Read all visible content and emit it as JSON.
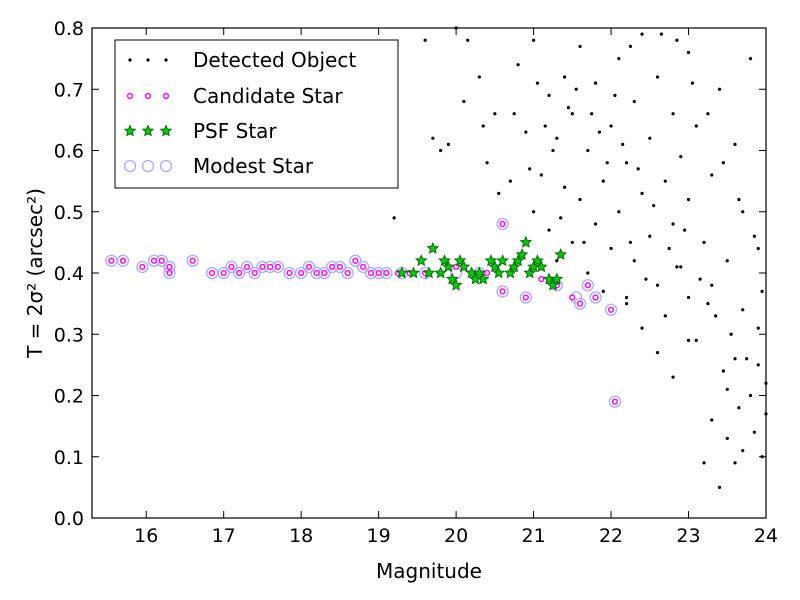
{
  "chart_data": {
    "type": "scatter",
    "xlabel": "Magnitude",
    "ylabel": "T = 2σ² (arcsec²)",
    "xlim": [
      15.3,
      24
    ],
    "ylim": [
      0.0,
      0.8
    ],
    "xticks": [
      16,
      17,
      18,
      19,
      20,
      21,
      22,
      23,
      24
    ],
    "yticks": [
      0.0,
      0.1,
      0.2,
      0.3,
      0.4,
      0.5,
      0.6,
      0.7,
      0.8
    ],
    "xtick_labels": [
      "16",
      "17",
      "18",
      "19",
      "20",
      "21",
      "22",
      "23",
      "24"
    ],
    "ytick_labels": [
      "0.0",
      "0.1",
      "0.2",
      "0.3",
      "0.4",
      "0.5",
      "0.6",
      "0.7",
      "0.8"
    ],
    "grid": false,
    "legend_position": "top-left",
    "colors": {
      "detected": "#000000",
      "candidate": "#ff00ff",
      "psf_fill": "#00cc00",
      "psf_edge": "#006400",
      "modest": "#aaaaff"
    },
    "series": [
      {
        "name": "Detected Object",
        "marker": "dot",
        "points": [
          [
            19.2,
            0.49
          ],
          [
            19.7,
            0.62
          ],
          [
            19.8,
            0.6
          ],
          [
            19.9,
            0.61
          ],
          [
            19.6,
            0.78
          ],
          [
            20.0,
            0.8
          ],
          [
            20.1,
            0.68
          ],
          [
            20.3,
            0.72
          ],
          [
            20.4,
            0.58
          ],
          [
            20.5,
            0.66
          ],
          [
            20.6,
            0.48
          ],
          [
            20.6,
            0.37
          ],
          [
            20.7,
            0.55
          ],
          [
            20.8,
            0.74
          ],
          [
            20.9,
            0.63
          ],
          [
            21.0,
            0.5
          ],
          [
            21.0,
            0.78
          ],
          [
            21.1,
            0.56
          ],
          [
            21.2,
            0.47
          ],
          [
            21.2,
            0.69
          ],
          [
            21.3,
            0.62
          ],
          [
            21.3,
            0.42
          ],
          [
            21.4,
            0.54
          ],
          [
            21.4,
            0.72
          ],
          [
            21.5,
            0.45
          ],
          [
            21.5,
            0.66
          ],
          [
            21.6,
            0.52
          ],
          [
            21.6,
            0.77
          ],
          [
            21.7,
            0.4
          ],
          [
            21.7,
            0.6
          ],
          [
            21.8,
            0.48
          ],
          [
            21.8,
            0.71
          ],
          [
            21.9,
            0.55
          ],
          [
            21.9,
            0.37
          ],
          [
            22.0,
            0.64
          ],
          [
            22.0,
            0.44
          ],
          [
            22.05,
            0.19
          ],
          [
            22.1,
            0.75
          ],
          [
            22.1,
            0.5
          ],
          [
            22.2,
            0.58
          ],
          [
            22.2,
            0.35
          ],
          [
            22.3,
            0.68
          ],
          [
            22.3,
            0.42
          ],
          [
            22.4,
            0.53
          ],
          [
            22.4,
            0.79
          ],
          [
            22.5,
            0.46
          ],
          [
            22.5,
            0.62
          ],
          [
            22.6,
            0.38
          ],
          [
            22.6,
            0.72
          ],
          [
            22.7,
            0.55
          ],
          [
            22.7,
            0.33
          ],
          [
            22.8,
            0.66
          ],
          [
            22.8,
            0.48
          ],
          [
            22.9,
            0.59
          ],
          [
            22.9,
            0.41
          ],
          [
            23.0,
            0.76
          ],
          [
            23.0,
            0.36
          ],
          [
            23.0,
            0.52
          ],
          [
            23.1,
            0.29
          ],
          [
            23.1,
            0.64
          ],
          [
            23.2,
            0.45
          ],
          [
            23.2,
            0.09
          ],
          [
            23.3,
            0.56
          ],
          [
            23.3,
            0.38
          ],
          [
            23.4,
            0.05
          ],
          [
            23.4,
            0.7
          ],
          [
            23.5,
            0.13
          ],
          [
            23.5,
            0.42
          ],
          [
            23.6,
            0.09
          ],
          [
            23.6,
            0.61
          ],
          [
            23.6,
            0.26
          ],
          [
            23.7,
            0.34
          ],
          [
            23.7,
            0.5
          ],
          [
            23.8,
            0.2
          ],
          [
            23.8,
            0.75
          ],
          [
            23.85,
            0.14
          ],
          [
            23.9,
            0.31
          ],
          [
            23.9,
            0.44
          ],
          [
            23.95,
            0.1
          ],
          [
            24.0,
            0.22
          ],
          [
            21.05,
            0.71
          ],
          [
            21.25,
            0.6
          ],
          [
            21.45,
            0.67
          ],
          [
            21.65,
            0.45
          ],
          [
            21.85,
            0.63
          ],
          [
            22.15,
            0.61
          ],
          [
            22.35,
            0.57
          ],
          [
            22.55,
            0.51
          ],
          [
            22.75,
            0.44
          ],
          [
            22.95,
            0.47
          ],
          [
            23.15,
            0.39
          ],
          [
            23.35,
            0.33
          ],
          [
            23.55,
            0.3
          ],
          [
            23.75,
            0.26
          ],
          [
            23.65,
            0.18
          ],
          [
            23.45,
            0.24
          ],
          [
            23.25,
            0.35
          ],
          [
            22.85,
            0.41
          ],
          [
            22.45,
            0.39
          ],
          [
            22.25,
            0.45
          ],
          [
            21.95,
            0.58
          ],
          [
            21.75,
            0.66
          ],
          [
            21.55,
            0.7
          ],
          [
            21.35,
            0.49
          ],
          [
            21.15,
            0.64
          ],
          [
            20.95,
            0.57
          ],
          [
            20.75,
            0.66
          ],
          [
            20.55,
            0.53
          ],
          [
            20.35,
            0.64
          ],
          [
            20.15,
            0.78
          ],
          [
            22.05,
            0.69
          ],
          [
            22.25,
            0.77
          ],
          [
            22.65,
            0.79
          ],
          [
            22.85,
            0.78
          ],
          [
            23.05,
            0.71
          ],
          [
            23.25,
            0.66
          ],
          [
            23.45,
            0.58
          ],
          [
            23.65,
            0.52
          ],
          [
            23.85,
            0.46
          ],
          [
            23.95,
            0.37
          ],
          [
            22.6,
            0.27
          ],
          [
            22.8,
            0.23
          ],
          [
            23.0,
            0.29
          ],
          [
            22.4,
            0.31
          ],
          [
            22.2,
            0.36
          ],
          [
            23.3,
            0.16
          ],
          [
            23.5,
            0.21
          ],
          [
            23.7,
            0.11
          ],
          [
            23.9,
            0.25
          ],
          [
            24.0,
            0.17
          ]
        ]
      },
      {
        "name": "Candidate Star",
        "marker": "circle",
        "points": [
          [
            15.55,
            0.42
          ],
          [
            15.7,
            0.42
          ],
          [
            15.95,
            0.41
          ],
          [
            16.1,
            0.42
          ],
          [
            16.2,
            0.42
          ],
          [
            16.3,
            0.41
          ],
          [
            16.3,
            0.4
          ],
          [
            16.6,
            0.42
          ],
          [
            16.85,
            0.4
          ],
          [
            17.0,
            0.4
          ],
          [
            17.1,
            0.41
          ],
          [
            17.2,
            0.4
          ],
          [
            17.3,
            0.41
          ],
          [
            17.4,
            0.4
          ],
          [
            17.5,
            0.41
          ],
          [
            17.6,
            0.41
          ],
          [
            17.7,
            0.41
          ],
          [
            17.85,
            0.4
          ],
          [
            18.0,
            0.4
          ],
          [
            18.1,
            0.41
          ],
          [
            18.2,
            0.4
          ],
          [
            18.3,
            0.4
          ],
          [
            18.4,
            0.41
          ],
          [
            18.5,
            0.41
          ],
          [
            18.6,
            0.4
          ],
          [
            18.7,
            0.42
          ],
          [
            18.8,
            0.41
          ],
          [
            18.9,
            0.4
          ],
          [
            19.0,
            0.4
          ],
          [
            19.1,
            0.4
          ],
          [
            19.25,
            0.4
          ],
          [
            19.4,
            0.4
          ],
          [
            19.6,
            0.4
          ],
          [
            19.8,
            0.4
          ],
          [
            20.0,
            0.41
          ],
          [
            20.2,
            0.4
          ],
          [
            20.4,
            0.4
          ],
          [
            20.6,
            0.48
          ],
          [
            20.6,
            0.37
          ],
          [
            20.9,
            0.36
          ],
          [
            21.1,
            0.39
          ],
          [
            21.3,
            0.38
          ],
          [
            21.5,
            0.36
          ],
          [
            21.6,
            0.35
          ],
          [
            21.7,
            0.38
          ],
          [
            21.8,
            0.36
          ],
          [
            22.0,
            0.34
          ],
          [
            22.05,
            0.19
          ]
        ]
      },
      {
        "name": "PSF Star",
        "marker": "star",
        "points": [
          [
            19.3,
            0.4
          ],
          [
            19.45,
            0.4
          ],
          [
            19.55,
            0.42
          ],
          [
            19.65,
            0.4
          ],
          [
            19.7,
            0.44
          ],
          [
            19.8,
            0.4
          ],
          [
            19.9,
            0.41
          ],
          [
            19.95,
            0.39
          ],
          [
            20.05,
            0.42
          ],
          [
            20.1,
            0.41
          ],
          [
            20.2,
            0.4
          ],
          [
            20.3,
            0.4
          ],
          [
            20.35,
            0.39
          ],
          [
            20.45,
            0.42
          ],
          [
            20.5,
            0.41
          ],
          [
            20.55,
            0.4
          ],
          [
            20.6,
            0.42
          ],
          [
            20.7,
            0.4
          ],
          [
            20.75,
            0.41
          ],
          [
            20.8,
            0.42
          ],
          [
            20.85,
            0.43
          ],
          [
            20.9,
            0.45
          ],
          [
            20.95,
            0.4
          ],
          [
            21.0,
            0.41
          ],
          [
            21.05,
            0.42
          ],
          [
            21.1,
            0.41
          ],
          [
            21.2,
            0.39
          ],
          [
            21.25,
            0.38
          ],
          [
            21.3,
            0.39
          ],
          [
            21.35,
            0.43
          ],
          [
            20.0,
            0.38
          ],
          [
            20.25,
            0.39
          ],
          [
            19.85,
            0.42
          ]
        ]
      },
      {
        "name": "Modest Star",
        "marker": "open-circle",
        "points": [
          [
            15.55,
            0.42
          ],
          [
            15.7,
            0.42
          ],
          [
            15.95,
            0.41
          ],
          [
            16.1,
            0.42
          ],
          [
            16.2,
            0.42
          ],
          [
            16.3,
            0.41
          ],
          [
            16.3,
            0.4
          ],
          [
            16.6,
            0.42
          ],
          [
            16.85,
            0.4
          ],
          [
            17.0,
            0.4
          ],
          [
            17.1,
            0.41
          ],
          [
            17.2,
            0.4
          ],
          [
            17.3,
            0.41
          ],
          [
            17.4,
            0.4
          ],
          [
            17.5,
            0.41
          ],
          [
            17.6,
            0.41
          ],
          [
            17.7,
            0.41
          ],
          [
            17.85,
            0.4
          ],
          [
            18.0,
            0.4
          ],
          [
            18.1,
            0.41
          ],
          [
            18.2,
            0.4
          ],
          [
            18.3,
            0.4
          ],
          [
            18.4,
            0.41
          ],
          [
            18.5,
            0.41
          ],
          [
            18.6,
            0.4
          ],
          [
            18.7,
            0.42
          ],
          [
            18.8,
            0.41
          ],
          [
            18.9,
            0.4
          ],
          [
            19.0,
            0.4
          ],
          [
            19.1,
            0.4
          ],
          [
            19.3,
            0.4
          ],
          [
            19.6,
            0.4
          ],
          [
            20.0,
            0.4
          ],
          [
            20.3,
            0.4
          ],
          [
            20.6,
            0.48
          ],
          [
            20.6,
            0.37
          ],
          [
            20.9,
            0.36
          ],
          [
            21.3,
            0.38
          ],
          [
            21.55,
            0.36
          ],
          [
            21.6,
            0.35
          ],
          [
            21.7,
            0.38
          ],
          [
            21.8,
            0.36
          ],
          [
            22.0,
            0.34
          ],
          [
            22.05,
            0.19
          ]
        ]
      }
    ]
  }
}
